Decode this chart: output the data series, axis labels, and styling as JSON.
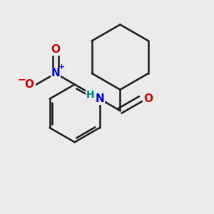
{
  "background_color": "#ebebeb",
  "bond_color": "#1a1a1a",
  "bond_width": 1.8,
  "N_color": "#0000cc",
  "O_color": "#cc0000",
  "H_color": "#008080",
  "plus_color": "#0000cc",
  "minus_color": "#cc0000",
  "font_size_atoms": 11,
  "font_size_charges": 8,
  "xlim": [
    -0.6,
    2.8
  ],
  "ylim": [
    -1.8,
    2.2
  ]
}
